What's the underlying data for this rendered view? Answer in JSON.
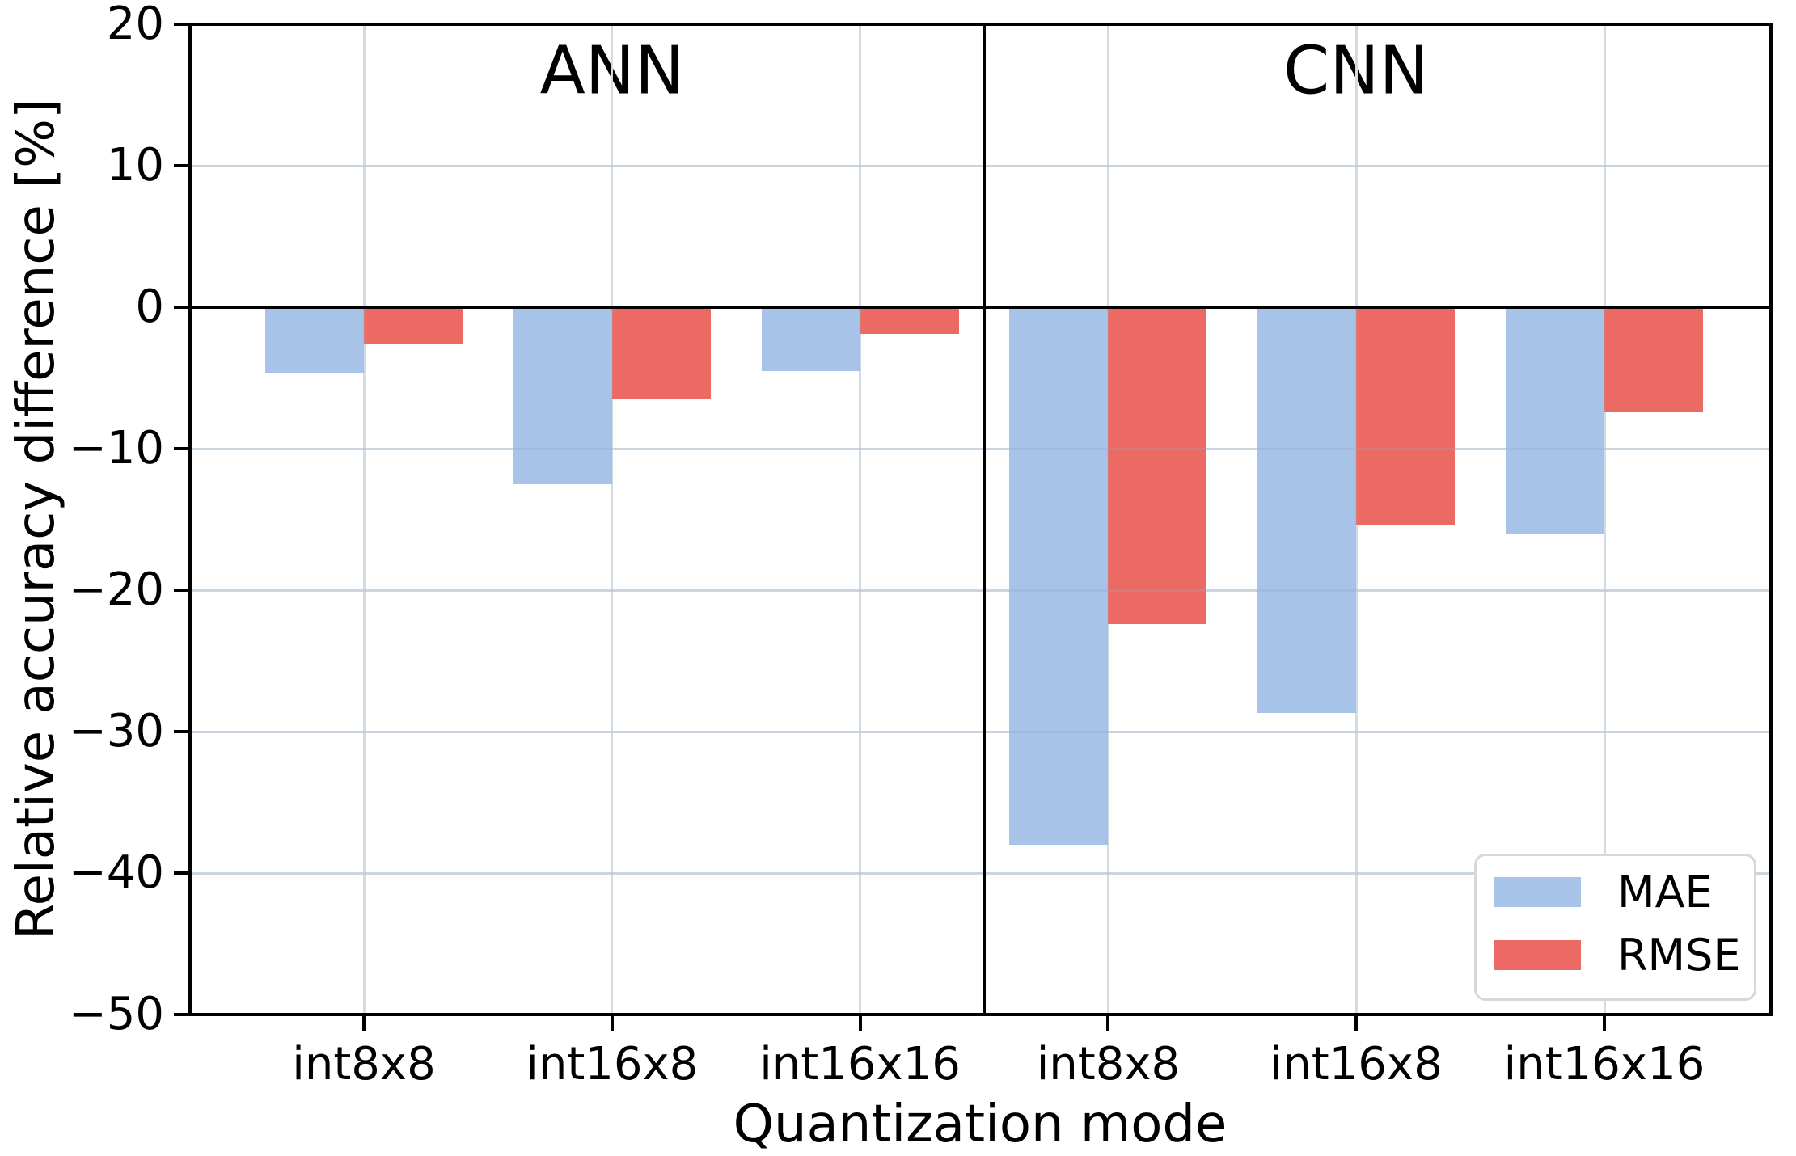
{
  "chart_data": {
    "type": "bar",
    "title": "",
    "xlabel": "Quantization mode",
    "ylabel": "Relative accuracy difference [%]",
    "ylim": [
      -50,
      20
    ],
    "yticks": [
      20,
      10,
      0,
      -10,
      -20,
      -30,
      -40,
      -50
    ],
    "categories": [
      "int8x8",
      "int16x8",
      "int16x16"
    ],
    "panels": [
      {
        "title": "ANN",
        "series": [
          {
            "name": "MAE",
            "values": [
              -4.6,
              -12.5,
              -4.5
            ]
          },
          {
            "name": "RMSE",
            "values": [
              -2.6,
              -6.5,
              -1.9
            ]
          }
        ]
      },
      {
        "title": "CNN",
        "series": [
          {
            "name": "MAE",
            "values": [
              -38.0,
              -28.7,
              -16.0
            ]
          },
          {
            "name": "RMSE",
            "values": [
              -22.4,
              -15.4,
              -7.4
            ]
          }
        ]
      }
    ],
    "legend": {
      "position": "lower right",
      "entries": [
        {
          "label": "MAE",
          "color": "#a7c3e8"
        },
        {
          "label": "RMSE",
          "color": "#eb6a64"
        }
      ]
    },
    "grid": true,
    "colors": {
      "mae_bar": "#a7c3e8",
      "rmse_bar": "#eb6a64",
      "gridline": "#e2e9ef",
      "axis": "#000000",
      "legend_border": "#d8d8d8",
      "background": "#ffffff"
    }
  }
}
